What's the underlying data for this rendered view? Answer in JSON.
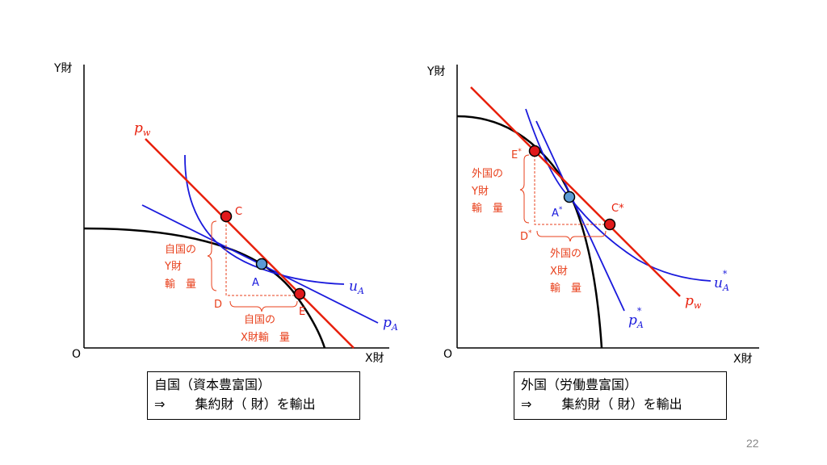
{
  "left": {
    "y_axis_label": "Y財",
    "x_axis_label": "X財",
    "origin_label": "O",
    "point_c": "C",
    "point_a": "A",
    "point_e": "E",
    "point_d": "D",
    "pw_label": "p",
    "pw_sub": "w",
    "ua_label": "u",
    "ua_sub": "A",
    "pa_label": "p",
    "pa_sub": "A",
    "y_import_lines": [
      "自国の",
      "Y財",
      "輸　量"
    ],
    "x_export_lines": [
      "自国の",
      "X財輸　量"
    ],
    "caption_line1": "自国（資本豊富国）",
    "caption_line2": "⇒　　 集約財（ 財）を輸出"
  },
  "right": {
    "y_axis_label": "Y財",
    "x_axis_label": "X財",
    "origin_label": "O",
    "point_e": "E",
    "point_e_star": "*",
    "point_a": "A",
    "point_a_star": "*",
    "point_c": "C*",
    "point_d": "D",
    "point_d_star": "*",
    "pw_label": "p",
    "pw_sub": "w",
    "ua_label": "u",
    "ua_sub": "A",
    "ua_sup": "*",
    "pa_label": "p",
    "pa_sub": "A",
    "pa_sup": "*",
    "y_export_lines": [
      "外国の",
      "Y財",
      "輸　量"
    ],
    "x_import_lines": [
      "外国の",
      "X財",
      "輸　量"
    ],
    "caption_line1": "外国（労働豊富国）",
    "caption_line2": "⇒　　 集約財（ 財）を輸出"
  },
  "page_number": "22",
  "colors": {
    "red": "#e8200c",
    "blue": "#1a1adc",
    "point_fill_a": "#5b9bd5",
    "point_fill_red": "#e0191b",
    "annotation": "#e8401c"
  }
}
